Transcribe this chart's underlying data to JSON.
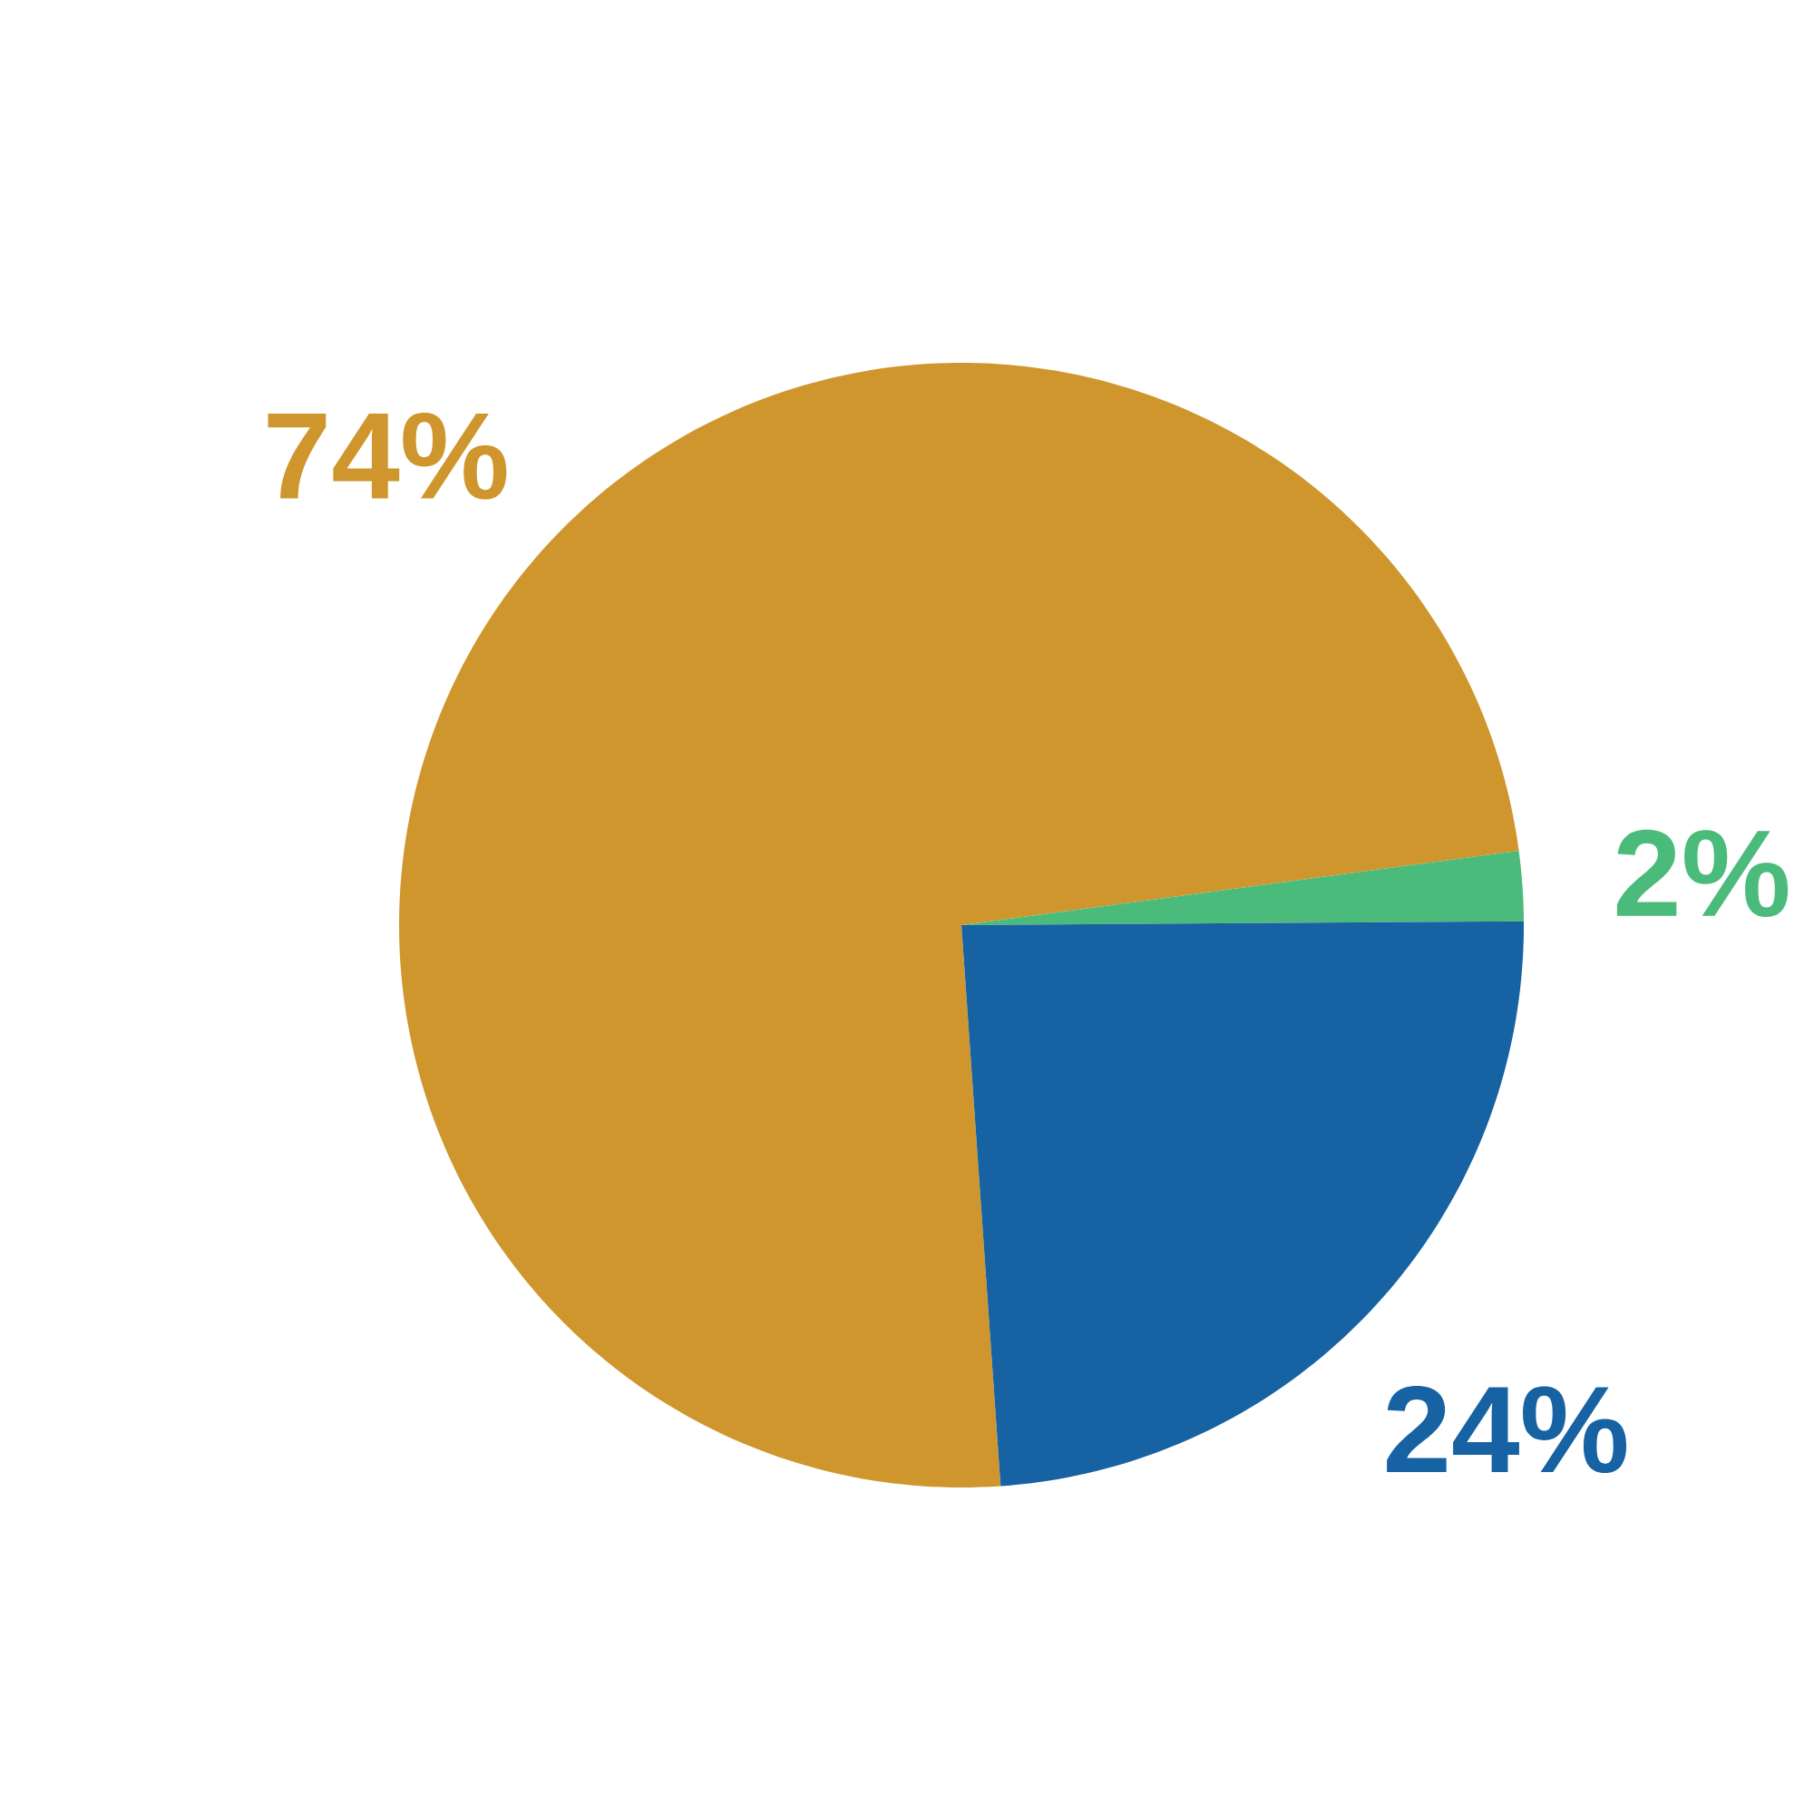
{
  "chart_data": {
    "type": "pie",
    "categories": [
      null,
      null,
      null
    ],
    "values": [
      74,
      2,
      24
    ],
    "colors": [
      "#cf962e",
      "#4abb7b",
      "#1662a2"
    ],
    "value_labels": [
      "74%",
      "2%",
      "24%"
    ]
  }
}
